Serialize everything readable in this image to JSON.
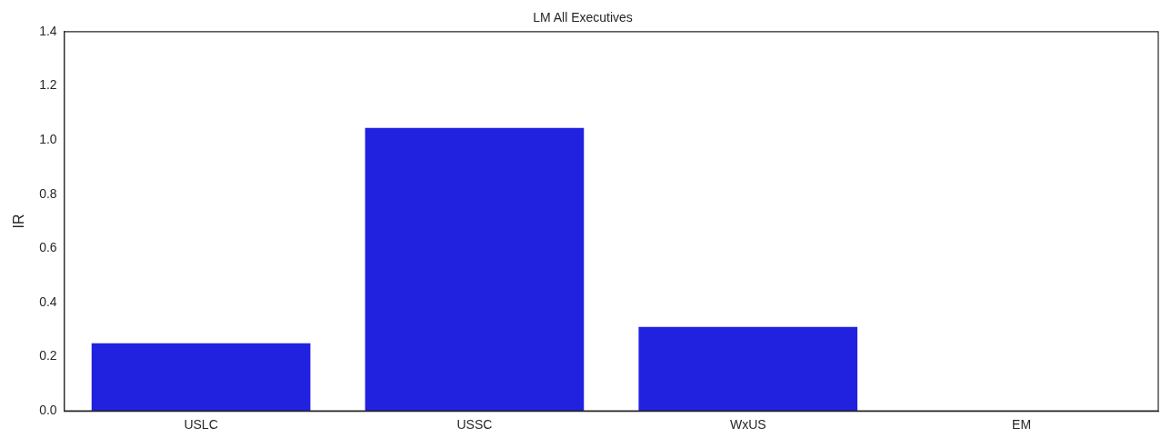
{
  "chart_data": {
    "type": "bar",
    "title": "LM All Executives",
    "ylabel": "IR",
    "categories": [
      "USLC",
      "USSC",
      "WxUS",
      "EM"
    ],
    "values": [
      0.25,
      1.045,
      0.31,
      0
    ],
    "color": "#2121e0",
    "ylim": [
      0,
      1.4
    ],
    "yticks": [
      {
        "value": 0,
        "label": "0.0"
      },
      0.2,
      0.4,
      0.6,
      0.8,
      {
        "value": 1,
        "label": "1.0"
      },
      1.2,
      1.4
    ],
    "grid": false,
    "legend": false
  }
}
